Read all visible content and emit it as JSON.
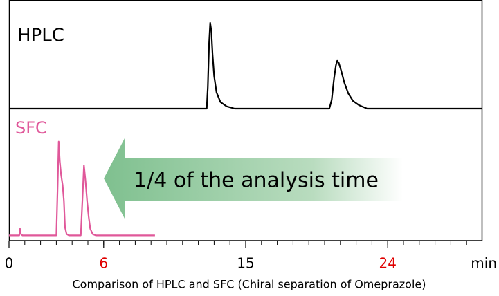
{
  "chart_data": [
    {
      "type": "line",
      "title": "HPLC",
      "color": "#000000",
      "xlim": [
        0,
        30
      ],
      "ylim": [
        0,
        100
      ],
      "x": [
        0,
        12.53,
        12.6,
        12.68,
        12.75,
        12.82,
        12.9,
        13.0,
        13.15,
        13.4,
        13.8,
        14.3,
        20.3,
        20.45,
        20.6,
        20.72,
        20.8,
        20.9,
        21.05,
        21.25,
        21.5,
        21.8,
        22.2,
        22.7,
        30
      ],
      "values": [
        0,
        0,
        20,
        60,
        79,
        72,
        50,
        30,
        15,
        6,
        2,
        0,
        0,
        8,
        28,
        40,
        44,
        42,
        35,
        24,
        14,
        7,
        3,
        0,
        0
      ]
    },
    {
      "type": "line",
      "title": "SFC",
      "color": "#e0589a",
      "xlim": [
        0,
        30
      ],
      "ylim": [
        0,
        100
      ],
      "x": [
        0,
        0.65,
        0.7,
        0.75,
        0.85,
        3.0,
        3.08,
        3.15,
        3.22,
        3.3,
        3.4,
        3.48,
        3.55,
        3.65,
        3.8,
        4.55,
        4.65,
        4.75,
        4.85,
        4.95,
        5.05,
        5.15,
        5.3,
        5.5,
        9.25
      ],
      "values": [
        4,
        4,
        9,
        5,
        4,
        4,
        40,
        75,
        60,
        50,
        42,
        30,
        10,
        5,
        4,
        4,
        30,
        57,
        45,
        30,
        18,
        9,
        5,
        4,
        4
      ],
      "xticks": [
        0,
        6,
        15,
        24
      ],
      "xtick_colors": [
        "#000000",
        "#e00000",
        "#000000",
        "#e00000"
      ],
      "xminor_step": 1,
      "xlabel": "min",
      "annotation": "1/4 of the analysis time"
    }
  ],
  "caption": "Comparison of HPLC and SFC (Chiral separation of Omeprazole)"
}
